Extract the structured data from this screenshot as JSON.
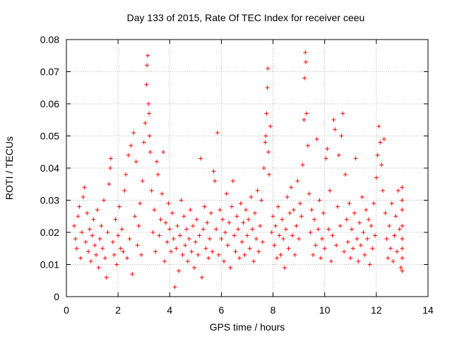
{
  "chart_data": {
    "type": "scatter",
    "title": "Day 133 of 2015, Rate Of TEC Index for receiver ceeu",
    "xlabel": "GPS time / hours",
    "ylabel": "ROTI / TECUs",
    "xlim": [
      0,
      14
    ],
    "ylim": [
      0,
      0.08
    ],
    "grid": true,
    "marker": "+",
    "series_color": "#ff0000",
    "x_ticks": [
      {
        "value": 0,
        "label": "0"
      },
      {
        "value": 2,
        "label": "2"
      },
      {
        "value": 4,
        "label": "4"
      },
      {
        "value": 6,
        "label": "6"
      },
      {
        "value": 8,
        "label": "8"
      },
      {
        "value": 10,
        "label": "10"
      },
      {
        "value": 12,
        "label": "12"
      },
      {
        "value": 14,
        "label": "14"
      }
    ],
    "y_ticks": [
      {
        "value": 0,
        "label": "0"
      },
      {
        "value": 0.01,
        "label": "0.01"
      },
      {
        "value": 0.02,
        "label": "0.02"
      },
      {
        "value": 0.03,
        "label": "0.03"
      },
      {
        "value": 0.04,
        "label": "0.04"
      },
      {
        "value": 0.05,
        "label": "0.05"
      },
      {
        "value": 0.06,
        "label": "0.06"
      },
      {
        "value": 0.07,
        "label": "0.07"
      },
      {
        "value": 0.08,
        "label": "0.08"
      }
    ],
    "series": [
      {
        "name": "ROTI",
        "points": [
          [
            0.3,
            0.022
          ],
          [
            0.35,
            0.018
          ],
          [
            0.4,
            0.015
          ],
          [
            0.45,
            0.025
          ],
          [
            0.5,
            0.028
          ],
          [
            0.55,
            0.012
          ],
          [
            0.6,
            0.02
          ],
          [
            0.65,
            0.031
          ],
          [
            0.7,
            0.034
          ],
          [
            0.75,
            0.017
          ],
          [
            0.8,
            0.026
          ],
          [
            0.85,
            0.014
          ],
          [
            0.9,
            0.021
          ],
          [
            0.95,
            0.011
          ],
          [
            1.0,
            0.019
          ],
          [
            1.05,
            0.024
          ],
          [
            1.1,
            0.016
          ],
          [
            1.15,
            0.013
          ],
          [
            1.2,
            0.027
          ],
          [
            1.25,
            0.009
          ],
          [
            1.3,
            0.018
          ],
          [
            1.35,
            0.022
          ],
          [
            1.4,
            0.015
          ],
          [
            1.45,
            0.03
          ],
          [
            1.5,
            0.012
          ],
          [
            1.55,
            0.006
          ],
          [
            1.6,
            0.02
          ],
          [
            1.65,
            0.035
          ],
          [
            1.7,
            0.04
          ],
          [
            1.72,
            0.043
          ],
          [
            1.8,
            0.017
          ],
          [
            1.85,
            0.013
          ],
          [
            1.9,
            0.024
          ],
          [
            1.95,
            0.01
          ],
          [
            2.0,
            0.019
          ],
          [
            2.05,
            0.028
          ],
          [
            2.1,
            0.015
          ],
          [
            2.15,
            0.021
          ],
          [
            2.2,
            0.014
          ],
          [
            2.25,
            0.033
          ],
          [
            2.3,
            0.038
          ],
          [
            2.35,
            0.012
          ],
          [
            2.4,
            0.044
          ],
          [
            2.45,
            0.018
          ],
          [
            2.5,
            0.047
          ],
          [
            2.55,
            0.007
          ],
          [
            2.6,
            0.051
          ],
          [
            2.65,
            0.025
          ],
          [
            2.7,
            0.042
          ],
          [
            2.75,
            0.016
          ],
          [
            2.8,
            0.022
          ],
          [
            2.85,
            0.029
          ],
          [
            2.9,
            0.013
          ],
          [
            2.95,
            0.036
          ],
          [
            3.0,
            0.048
          ],
          [
            3.05,
            0.054
          ],
          [
            3.1,
            0.066
          ],
          [
            3.12,
            0.072
          ],
          [
            3.15,
            0.075
          ],
          [
            3.18,
            0.06
          ],
          [
            3.2,
            0.057
          ],
          [
            3.22,
            0.05
          ],
          [
            3.25,
            0.045
          ],
          [
            3.3,
            0.033
          ],
          [
            3.35,
            0.02
          ],
          [
            3.4,
            0.027
          ],
          [
            3.45,
            0.014
          ],
          [
            3.5,
            0.042
          ],
          [
            3.55,
            0.038
          ],
          [
            3.6,
            0.019
          ],
          [
            3.65,
            0.024
          ],
          [
            3.7,
            0.032
          ],
          [
            3.75,
            0.045
          ],
          [
            3.8,
            0.011
          ],
          [
            3.85,
            0.023
          ],
          [
            3.9,
            0.017
          ],
          [
            3.95,
            0.029
          ],
          [
            4.0,
            0.021
          ],
          [
            4.05,
            0.014
          ],
          [
            4.1,
            0.026
          ],
          [
            4.15,
            0.018
          ],
          [
            4.2,
            0.003
          ],
          [
            4.25,
            0.015
          ],
          [
            4.3,
            0.022
          ],
          [
            4.35,
            0.008
          ],
          [
            4.4,
            0.019
          ],
          [
            4.45,
            0.03
          ],
          [
            4.5,
            0.013
          ],
          [
            4.55,
            0.025
          ],
          [
            4.6,
            0.016
          ],
          [
            4.65,
            0.021
          ],
          [
            4.7,
            0.011
          ],
          [
            4.75,
            0.018
          ],
          [
            4.8,
            0.027
          ],
          [
            4.85,
            0.014
          ],
          [
            4.9,
            0.022
          ],
          [
            4.95,
            0.009
          ],
          [
            5.0,
            0.017
          ],
          [
            5.05,
            0.024
          ],
          [
            5.1,
            0.013
          ],
          [
            5.15,
            0.019
          ],
          [
            5.2,
            0.043
          ],
          [
            5.25,
            0.006
          ],
          [
            5.3,
            0.021
          ],
          [
            5.35,
            0.028
          ],
          [
            5.4,
            0.015
          ],
          [
            5.45,
            0.023
          ],
          [
            5.5,
            0.012
          ],
          [
            5.55,
            0.018
          ],
          [
            5.6,
            0.026
          ],
          [
            5.65,
            0.014
          ],
          [
            5.7,
            0.039
          ],
          [
            5.75,
            0.036
          ],
          [
            5.8,
            0.021
          ],
          [
            5.85,
            0.051
          ],
          [
            5.9,
            0.013
          ],
          [
            5.95,
            0.027
          ],
          [
            6.0,
            0.018
          ],
          [
            6.05,
            0.024
          ],
          [
            6.1,
            0.011
          ],
          [
            6.15,
            0.02
          ],
          [
            6.2,
            0.032
          ],
          [
            6.25,
            0.016
          ],
          [
            6.3,
            0.023
          ],
          [
            6.35,
            0.009
          ],
          [
            6.4,
            0.028
          ],
          [
            6.45,
            0.036
          ],
          [
            6.5,
            0.019
          ],
          [
            6.55,
            0.014
          ],
          [
            6.6,
            0.025
          ],
          [
            6.65,
            0.021
          ],
          [
            6.7,
            0.012
          ],
          [
            6.75,
            0.029
          ],
          [
            6.8,
            0.017
          ],
          [
            6.85,
            0.023
          ],
          [
            6.9,
            0.013
          ],
          [
            6.95,
            0.027
          ],
          [
            7.0,
            0.019
          ],
          [
            7.05,
            0.024
          ],
          [
            7.1,
            0.015
          ],
          [
            7.15,
            0.031
          ],
          [
            7.2,
            0.021
          ],
          [
            7.25,
            0.011
          ],
          [
            7.3,
            0.026
          ],
          [
            7.35,
            0.018
          ],
          [
            7.4,
            0.033
          ],
          [
            7.45,
            0.014
          ],
          [
            7.5,
            0.022
          ],
          [
            7.55,
            0.03
          ],
          [
            7.6,
            0.017
          ],
          [
            7.65,
            0.04
          ],
          [
            7.7,
            0.048
          ],
          [
            7.72,
            0.05
          ],
          [
            7.75,
            0.057
          ],
          [
            7.78,
            0.065
          ],
          [
            7.8,
            0.071
          ],
          [
            7.82,
            0.045
          ],
          [
            7.85,
            0.038
          ],
          [
            7.9,
            0.053
          ],
          [
            7.95,
            0.02
          ],
          [
            8.0,
            0.025
          ],
          [
            8.05,
            0.016
          ],
          [
            8.1,
            0.022
          ],
          [
            8.15,
            0.012
          ],
          [
            8.2,
            0.028
          ],
          [
            8.25,
            0.019
          ],
          [
            8.3,
            0.013
          ],
          [
            8.35,
            0.024
          ],
          [
            8.4,
            0.018
          ],
          [
            8.45,
            0.009
          ],
          [
            8.5,
            0.021
          ],
          [
            8.55,
            0.031
          ],
          [
            8.6,
            0.015
          ],
          [
            8.65,
            0.026
          ],
          [
            8.7,
            0.034
          ],
          [
            8.75,
            0.019
          ],
          [
            8.8,
            0.027
          ],
          [
            8.85,
            0.013
          ],
          [
            8.9,
            0.022
          ],
          [
            8.95,
            0.036
          ],
          [
            9.0,
            0.018
          ],
          [
            9.05,
            0.029
          ],
          [
            9.1,
            0.025
          ],
          [
            9.15,
            0.041
          ],
          [
            9.2,
            0.055
          ],
          [
            9.22,
            0.068
          ],
          [
            9.25,
            0.076
          ],
          [
            9.27,
            0.073
          ],
          [
            9.3,
            0.057
          ],
          [
            9.35,
            0.047
          ],
          [
            9.4,
            0.032
          ],
          [
            9.45,
            0.02
          ],
          [
            9.5,
            0.027
          ],
          [
            9.55,
            0.013
          ],
          [
            9.6,
            0.024
          ],
          [
            9.65,
            0.016
          ],
          [
            9.7,
            0.049
          ],
          [
            9.75,
            0.021
          ],
          [
            9.8,
            0.03
          ],
          [
            9.85,
            0.012
          ],
          [
            9.9,
            0.018
          ],
          [
            9.95,
            0.026
          ],
          [
            10.0,
            0.015
          ],
          [
            10.05,
            0.043
          ],
          [
            10.1,
            0.046
          ],
          [
            10.15,
            0.021
          ],
          [
            10.2,
            0.033
          ],
          [
            10.25,
            0.011
          ],
          [
            10.3,
            0.019
          ],
          [
            10.35,
            0.055
          ],
          [
            10.4,
            0.052
          ],
          [
            10.45,
            0.016
          ],
          [
            10.5,
            0.028
          ],
          [
            10.55,
            0.044
          ],
          [
            10.6,
            0.022
          ],
          [
            10.65,
            0.05
          ],
          [
            10.7,
            0.057
          ],
          [
            10.75,
            0.014
          ],
          [
            10.8,
            0.038
          ],
          [
            10.85,
            0.024
          ],
          [
            10.9,
            0.017
          ],
          [
            10.95,
            0.029
          ],
          [
            11.0,
            0.012
          ],
          [
            11.05,
            0.021
          ],
          [
            11.1,
            0.015
          ],
          [
            11.15,
            0.026
          ],
          [
            11.2,
            0.043
          ],
          [
            11.25,
            0.018
          ],
          [
            11.3,
            0.011
          ],
          [
            11.35,
            0.023
          ],
          [
            11.4,
            0.016
          ],
          [
            11.45,
            0.031
          ],
          [
            11.5,
            0.02
          ],
          [
            11.55,
            0.013
          ],
          [
            11.6,
            0.027
          ],
          [
            11.65,
            0.018
          ],
          [
            11.7,
            0.024
          ],
          [
            11.75,
            0.01
          ],
          [
            11.8,
            0.022
          ],
          [
            11.85,
            0.015
          ],
          [
            11.9,
            0.029
          ],
          [
            11.95,
            0.019
          ],
          [
            12.0,
            0.037
          ],
          [
            12.05,
            0.044
          ],
          [
            12.1,
            0.053
          ],
          [
            12.15,
            0.048
          ],
          [
            12.2,
            0.041
          ],
          [
            12.25,
            0.033
          ],
          [
            12.3,
            0.049
          ],
          [
            12.35,
            0.026
          ],
          [
            12.4,
            0.018
          ],
          [
            12.45,
            0.012
          ],
          [
            12.5,
            0.022
          ],
          [
            12.55,
            0.015
          ],
          [
            12.6,
            0.029
          ],
          [
            12.65,
            0.011
          ],
          [
            12.7,
            0.019
          ],
          [
            12.75,
            0.025
          ],
          [
            12.8,
            0.014
          ],
          [
            12.85,
            0.033
          ],
          [
            12.9,
            0.021
          ],
          [
            12.95,
            0.009
          ],
          [
            13.0,
            0.034
          ],
          [
            13.0,
            0.018
          ],
          [
            13.0,
            0.027
          ],
          [
            13.0,
            0.012
          ],
          [
            13.0,
            0.022
          ],
          [
            13.0,
            0.008
          ],
          [
            13.0,
            0.03
          ],
          [
            13.0,
            0.015
          ]
        ]
      }
    ]
  }
}
